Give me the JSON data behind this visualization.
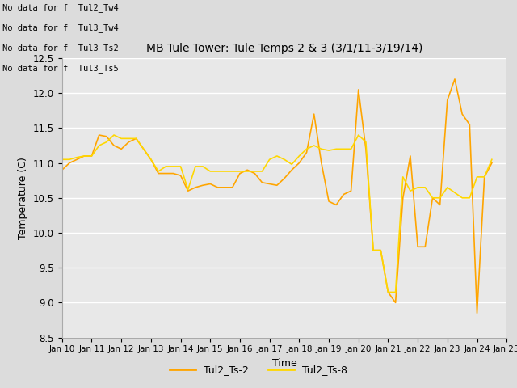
{
  "title": "MB Tule Tower: Tule Temps 2 & 3 (3/1/11-3/19/14)",
  "xlabel": "Time",
  "ylabel": "Temperature (C)",
  "ylim": [
    8.5,
    12.5
  ],
  "xlim": [
    10,
    25
  ],
  "fig_bg": "#dcdcdc",
  "plot_bg": "#e8e8e8",
  "grid_color": "#ffffff",
  "line1_color": "#FFA500",
  "line2_color": "#FFD700",
  "legend_labels": [
    "Tul2_Ts-2",
    "Tul2_Ts-8"
  ],
  "no_data_lines": [
    "No data for f  Tul2_Tw4",
    "No data for f  Tul3_Tw4",
    "No data for f  Tul3_Ts2",
    "No data for f  Tul3_Ts5"
  ],
  "ts2_x": [
    10.0,
    10.25,
    10.5,
    10.75,
    11.0,
    11.25,
    11.5,
    11.75,
    12.0,
    12.25,
    12.5,
    12.75,
    13.0,
    13.25,
    13.5,
    13.75,
    14.0,
    14.25,
    14.5,
    14.75,
    15.0,
    15.25,
    15.5,
    15.75,
    16.0,
    16.25,
    16.5,
    16.75,
    17.0,
    17.25,
    17.5,
    17.75,
    18.0,
    18.25,
    18.5,
    18.75,
    19.0,
    19.25,
    19.5,
    19.75,
    20.0,
    20.25,
    20.5,
    20.75,
    21.0,
    21.25,
    21.5,
    21.75,
    22.0,
    22.25,
    22.5,
    22.75,
    23.0,
    23.25,
    23.5,
    23.75,
    24.0,
    24.25,
    24.5
  ],
  "ts2_y": [
    10.9,
    11.0,
    11.05,
    11.1,
    11.1,
    11.4,
    11.38,
    11.25,
    11.2,
    11.3,
    11.35,
    11.2,
    11.05,
    10.85,
    10.85,
    10.85,
    10.82,
    10.6,
    10.65,
    10.68,
    10.7,
    10.65,
    10.65,
    10.65,
    10.85,
    10.9,
    10.85,
    10.72,
    10.7,
    10.68,
    10.78,
    10.9,
    11.0,
    11.15,
    11.7,
    11.0,
    10.45,
    10.4,
    10.55,
    10.6,
    12.05,
    11.2,
    9.75,
    9.75,
    9.15,
    9.0,
    10.5,
    11.1,
    9.8,
    9.8,
    10.5,
    10.4,
    11.9,
    12.2,
    11.7,
    11.55,
    8.85,
    10.8,
    11.0
  ],
  "ts8_x": [
    10.0,
    10.25,
    10.5,
    10.75,
    11.0,
    11.25,
    11.5,
    11.75,
    12.0,
    12.25,
    12.5,
    12.75,
    13.0,
    13.25,
    13.5,
    13.75,
    14.0,
    14.25,
    14.5,
    14.75,
    15.0,
    15.25,
    15.5,
    15.75,
    16.0,
    16.25,
    16.5,
    16.75,
    17.0,
    17.25,
    17.5,
    17.75,
    18.0,
    18.25,
    18.5,
    18.75,
    19.0,
    19.25,
    19.5,
    19.75,
    20.0,
    20.25,
    20.5,
    20.75,
    21.0,
    21.25,
    21.5,
    21.75,
    22.0,
    22.25,
    22.5,
    22.75,
    23.0,
    23.5,
    23.75,
    24.0,
    24.25,
    24.5
  ],
  "ts8_y": [
    11.05,
    11.05,
    11.08,
    11.1,
    11.1,
    11.25,
    11.3,
    11.4,
    11.35,
    11.35,
    11.35,
    11.2,
    11.05,
    10.88,
    10.95,
    10.95,
    10.95,
    10.62,
    10.95,
    10.95,
    10.88,
    10.88,
    10.88,
    10.88,
    10.88,
    10.88,
    10.88,
    10.88,
    11.05,
    11.1,
    11.05,
    10.98,
    11.1,
    11.2,
    11.25,
    11.2,
    11.18,
    11.2,
    11.2,
    11.2,
    11.4,
    11.3,
    9.75,
    9.75,
    9.15,
    9.15,
    10.8,
    10.6,
    10.65,
    10.65,
    10.5,
    10.5,
    10.65,
    10.5,
    10.5,
    10.8,
    10.8,
    11.05
  ]
}
